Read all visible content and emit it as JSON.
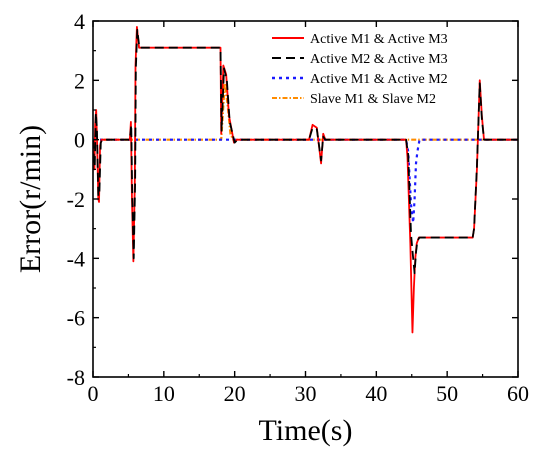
{
  "chart_data": {
    "type": "line",
    "title": "",
    "xlabel": "Time(s)",
    "ylabel": "Error(r/min)",
    "xlim": [
      0,
      60
    ],
    "ylim": [
      -8,
      4
    ],
    "xticks": [
      "0",
      "10",
      "20",
      "30",
      "40",
      "50",
      "60"
    ],
    "yticks": [
      "4",
      "2",
      "0",
      "-2",
      "-4",
      "-6",
      "-8"
    ],
    "grid": false,
    "legend_position": "top-right",
    "series": [
      {
        "name": "Active M1 & Active M3",
        "color": "#ff0000",
        "dash": "solid",
        "points": [
          [
            0,
            0
          ],
          [
            0.1,
            -0.6
          ],
          [
            0.2,
            -1.0
          ],
          [
            0.3,
            0.5
          ],
          [
            0.45,
            1.0
          ],
          [
            0.6,
            -0.3
          ],
          [
            0.75,
            -2.0
          ],
          [
            0.85,
            -2.1
          ],
          [
            1.0,
            -0.2
          ],
          [
            1.2,
            0
          ],
          [
            5.2,
            0
          ],
          [
            5.35,
            0.6
          ],
          [
            5.5,
            -2.0
          ],
          [
            5.7,
            -4.1
          ],
          [
            5.9,
            -1.5
          ],
          [
            6.0,
            2.5
          ],
          [
            6.2,
            3.8
          ],
          [
            6.5,
            3.1
          ],
          [
            18.0,
            3.1
          ],
          [
            18.1,
            0.2
          ],
          [
            18.4,
            2.5
          ],
          [
            18.8,
            2.2
          ],
          [
            19.2,
            0.8
          ],
          [
            19.6,
            0.3
          ],
          [
            19.9,
            -0.1
          ],
          [
            20.3,
            0
          ],
          [
            30.5,
            0
          ],
          [
            31.0,
            0.5
          ],
          [
            31.6,
            0.4
          ],
          [
            32.2,
            -0.8
          ],
          [
            32.5,
            0.2
          ],
          [
            32.8,
            0
          ],
          [
            44.2,
            0
          ],
          [
            44.4,
            -0.6
          ],
          [
            44.8,
            -3.5
          ],
          [
            45.1,
            -6.5
          ],
          [
            45.3,
            -5.0
          ],
          [
            45.5,
            -4.0
          ],
          [
            45.7,
            -3.5
          ],
          [
            46.0,
            -3.3
          ],
          [
            53.6,
            -3.3
          ],
          [
            53.8,
            -3.0
          ],
          [
            54.2,
            -1.0
          ],
          [
            54.6,
            2.0
          ],
          [
            54.9,
            0.8
          ],
          [
            55.2,
            0
          ],
          [
            60,
            0
          ]
        ]
      },
      {
        "name": "Active M2 & Active M3",
        "color": "#000000",
        "dash": "dashed",
        "points": [
          [
            0,
            0
          ],
          [
            0.1,
            -0.5
          ],
          [
            0.25,
            -0.9
          ],
          [
            0.4,
            0.9
          ],
          [
            0.55,
            0.4
          ],
          [
            0.75,
            -1.9
          ],
          [
            0.9,
            -1.8
          ],
          [
            1.1,
            -0.1
          ],
          [
            1.3,
            0
          ],
          [
            5.2,
            0
          ],
          [
            5.4,
            0.5
          ],
          [
            5.55,
            -2.0
          ],
          [
            5.75,
            -4.0
          ],
          [
            5.95,
            -1.4
          ],
          [
            6.05,
            2.4
          ],
          [
            6.25,
            3.7
          ],
          [
            6.55,
            3.1
          ],
          [
            18.0,
            3.1
          ],
          [
            18.15,
            0.3
          ],
          [
            18.5,
            2.4
          ],
          [
            18.9,
            2.0
          ],
          [
            19.3,
            0.6
          ],
          [
            19.7,
            0.2
          ],
          [
            20.0,
            -0.1
          ],
          [
            20.4,
            0
          ],
          [
            30.5,
            0
          ],
          [
            31.0,
            0.4
          ],
          [
            31.6,
            0.35
          ],
          [
            32.2,
            -0.7
          ],
          [
            32.5,
            0.1
          ],
          [
            32.8,
            0
          ],
          [
            44.2,
            0
          ],
          [
            44.5,
            -0.5
          ],
          [
            44.9,
            -3.2
          ],
          [
            45.2,
            -4.0
          ],
          [
            45.4,
            -4.5
          ],
          [
            45.6,
            -3.8
          ],
          [
            45.8,
            -3.4
          ],
          [
            46.1,
            -3.3
          ],
          [
            53.6,
            -3.3
          ],
          [
            53.8,
            -3.0
          ],
          [
            54.2,
            -0.9
          ],
          [
            54.6,
            1.9
          ],
          [
            54.9,
            0.7
          ],
          [
            55.2,
            0
          ],
          [
            60,
            0
          ]
        ]
      },
      {
        "name": "Active M1 & Active M2",
        "color": "#1a1aff",
        "dash": "dotted",
        "points": [
          [
            0,
            0
          ],
          [
            44.2,
            0
          ],
          [
            44.5,
            -0.4
          ],
          [
            44.9,
            -2.2
          ],
          [
            45.2,
            -2.8
          ],
          [
            45.4,
            -2.0
          ],
          [
            45.6,
            -0.8
          ],
          [
            45.8,
            -0.4
          ],
          [
            46.1,
            0
          ],
          [
            60,
            0
          ]
        ]
      },
      {
        "name": "Slave M1 & Slave M2",
        "color": "#ff8c00",
        "dash": "dashdot",
        "points": [
          [
            0,
            0
          ],
          [
            18.1,
            0
          ],
          [
            18.6,
            1.9
          ],
          [
            19.0,
            1.2
          ],
          [
            19.4,
            0.2
          ],
          [
            19.8,
            0
          ],
          [
            60,
            0
          ]
        ]
      }
    ]
  }
}
